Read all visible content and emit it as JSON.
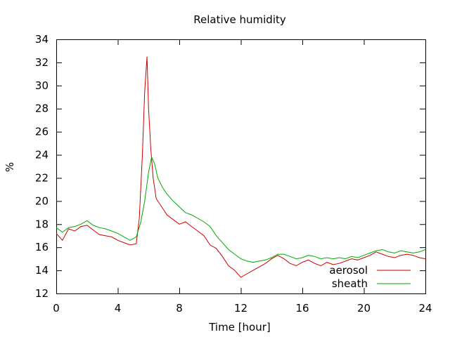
{
  "chart_data": {
    "type": "line",
    "title": "Relative humidity",
    "xlabel": "Time [hour]",
    "ylabel": "%",
    "xlim": [
      0,
      24
    ],
    "ylim": [
      12,
      34
    ],
    "xticks": [
      0,
      4,
      8,
      12,
      16,
      20,
      24
    ],
    "yticks": [
      12,
      14,
      16,
      18,
      20,
      22,
      24,
      26,
      28,
      30,
      32,
      34
    ],
    "grid": false,
    "legend_position": "bottom-right",
    "series": [
      {
        "name": "aerosol",
        "color": "#cc0000",
        "points": [
          [
            0,
            17.2
          ],
          [
            0.4,
            16.6
          ],
          [
            0.8,
            17.6
          ],
          [
            1.2,
            17.4
          ],
          [
            1.6,
            17.8
          ],
          [
            2.0,
            17.9
          ],
          [
            2.4,
            17.5
          ],
          [
            2.8,
            17.1
          ],
          [
            3.2,
            17.0
          ],
          [
            3.6,
            16.9
          ],
          [
            4.0,
            16.6
          ],
          [
            4.4,
            16.4
          ],
          [
            4.8,
            16.2
          ],
          [
            5.2,
            16.3
          ],
          [
            5.4,
            18.5
          ],
          [
            5.6,
            24.0
          ],
          [
            5.75,
            29.5
          ],
          [
            5.9,
            32.5
          ],
          [
            6.0,
            28.0
          ],
          [
            6.15,
            24.5
          ],
          [
            6.3,
            22.0
          ],
          [
            6.5,
            20.2
          ],
          [
            6.8,
            19.6
          ],
          [
            7.2,
            18.8
          ],
          [
            7.6,
            18.4
          ],
          [
            8.0,
            18.0
          ],
          [
            8.4,
            18.2
          ],
          [
            8.8,
            17.8
          ],
          [
            9.2,
            17.4
          ],
          [
            9.6,
            17.0
          ],
          [
            10.0,
            16.2
          ],
          [
            10.4,
            15.9
          ],
          [
            10.8,
            15.2
          ],
          [
            11.2,
            14.4
          ],
          [
            11.6,
            14.0
          ],
          [
            12.0,
            13.4
          ],
          [
            12.4,
            13.7
          ],
          [
            12.8,
            14.0
          ],
          [
            13.2,
            14.3
          ],
          [
            13.6,
            14.6
          ],
          [
            14.0,
            15.0
          ],
          [
            14.4,
            15.3
          ],
          [
            14.8,
            15.0
          ],
          [
            15.2,
            14.6
          ],
          [
            15.6,
            14.4
          ],
          [
            16.0,
            14.7
          ],
          [
            16.4,
            14.9
          ],
          [
            16.8,
            14.6
          ],
          [
            17.2,
            14.4
          ],
          [
            17.6,
            14.7
          ],
          [
            18.0,
            14.5
          ],
          [
            18.4,
            14.6
          ],
          [
            18.8,
            14.8
          ],
          [
            19.2,
            15.0
          ],
          [
            19.6,
            14.9
          ],
          [
            20.0,
            15.1
          ],
          [
            20.4,
            15.3
          ],
          [
            20.8,
            15.6
          ],
          [
            21.2,
            15.4
          ],
          [
            21.6,
            15.2
          ],
          [
            22.0,
            15.1
          ],
          [
            22.4,
            15.3
          ],
          [
            22.8,
            15.4
          ],
          [
            23.2,
            15.3
          ],
          [
            23.6,
            15.1
          ],
          [
            24.0,
            15.0
          ]
        ]
      },
      {
        "name": "sheath",
        "color": "#00aa00",
        "points": [
          [
            0,
            17.7
          ],
          [
            0.4,
            17.3
          ],
          [
            0.8,
            17.7
          ],
          [
            1.2,
            17.8
          ],
          [
            1.6,
            18.0
          ],
          [
            2.0,
            18.3
          ],
          [
            2.4,
            17.9
          ],
          [
            2.8,
            17.7
          ],
          [
            3.2,
            17.6
          ],
          [
            3.6,
            17.4
          ],
          [
            4.0,
            17.2
          ],
          [
            4.4,
            16.9
          ],
          [
            4.8,
            16.6
          ],
          [
            5.2,
            16.9
          ],
          [
            5.5,
            18.2
          ],
          [
            5.75,
            20.0
          ],
          [
            6.0,
            22.5
          ],
          [
            6.2,
            23.8
          ],
          [
            6.4,
            23.2
          ],
          [
            6.6,
            22.0
          ],
          [
            6.9,
            21.2
          ],
          [
            7.2,
            20.6
          ],
          [
            7.6,
            20.0
          ],
          [
            8.0,
            19.5
          ],
          [
            8.4,
            19.0
          ],
          [
            8.8,
            18.8
          ],
          [
            9.2,
            18.5
          ],
          [
            9.6,
            18.2
          ],
          [
            10.0,
            17.8
          ],
          [
            10.4,
            17.0
          ],
          [
            10.8,
            16.4
          ],
          [
            11.2,
            15.8
          ],
          [
            11.6,
            15.4
          ],
          [
            12.0,
            15.0
          ],
          [
            12.4,
            14.8
          ],
          [
            12.8,
            14.7
          ],
          [
            13.2,
            14.8
          ],
          [
            13.6,
            14.9
          ],
          [
            14.0,
            15.1
          ],
          [
            14.4,
            15.4
          ],
          [
            14.8,
            15.4
          ],
          [
            15.2,
            15.2
          ],
          [
            15.6,
            15.0
          ],
          [
            16.0,
            15.1
          ],
          [
            16.4,
            15.3
          ],
          [
            16.8,
            15.2
          ],
          [
            17.2,
            15.0
          ],
          [
            17.6,
            15.1
          ],
          [
            18.0,
            15.0
          ],
          [
            18.4,
            15.1
          ],
          [
            18.8,
            15.0
          ],
          [
            19.2,
            15.2
          ],
          [
            19.6,
            15.1
          ],
          [
            20.0,
            15.3
          ],
          [
            20.4,
            15.5
          ],
          [
            20.8,
            15.7
          ],
          [
            21.2,
            15.8
          ],
          [
            21.6,
            15.6
          ],
          [
            22.0,
            15.5
          ],
          [
            22.4,
            15.7
          ],
          [
            22.8,
            15.6
          ],
          [
            23.2,
            15.5
          ],
          [
            23.6,
            15.6
          ],
          [
            24.0,
            15.8
          ]
        ]
      }
    ]
  }
}
